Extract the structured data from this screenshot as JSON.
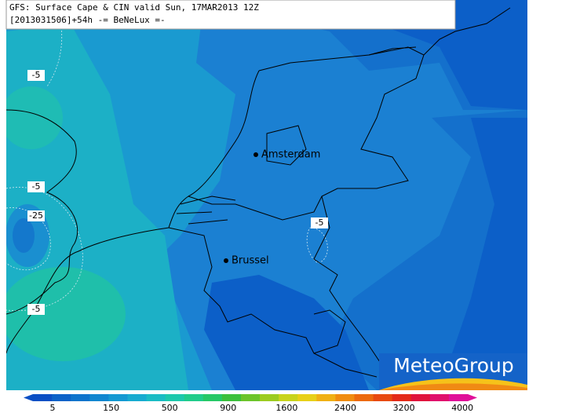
{
  "header": {
    "line1": "GFS: Surface Cape & CIN valid Sun, 17MAR2013 12Z",
    "line2": "[2013031506]+54h -= BeNeLux =-"
  },
  "cities": [
    {
      "label": "Amsterdam"
    },
    {
      "label": "Brussel"
    }
  ],
  "contour_labels": [
    "-5",
    "-5",
    "-25",
    "-5",
    "-5"
  ],
  "logo": "MeteoGroup",
  "colorbar": {
    "ticks": [
      5,
      150,
      500,
      900,
      1600,
      2400,
      3200,
      4000
    ],
    "colors": [
      "#0a4fc4",
      "#0b62c8",
      "#0d74cc",
      "#1087d0",
      "#1399d2",
      "#17abd0",
      "#1abcc4",
      "#1cc8ac",
      "#20cc8a",
      "#26c866",
      "#3cc03c",
      "#6cc42a",
      "#9ccc20",
      "#c8d41c",
      "#e8d018",
      "#f0b014",
      "#f08c10",
      "#ec6a0e",
      "#e84a10",
      "#e42a18",
      "#e0143c",
      "#e0106c",
      "#e01098"
    ]
  }
}
